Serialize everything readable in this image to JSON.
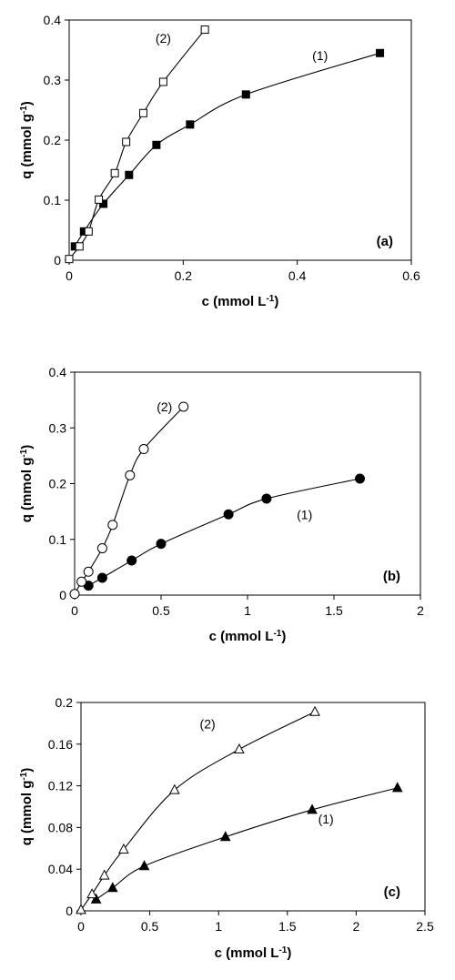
{
  "chart_data": [
    {
      "type": "scatter",
      "panel": "(a)",
      "xlabel": "c (mmol L",
      "xlabel_sup": "-1",
      "xlabel_close": ")",
      "ylabel": "q (mmol g",
      "ylabel_sup": "-1",
      "ylabel_close": ")",
      "xlim": [
        0,
        0.6
      ],
      "ylim": [
        0,
        0.4
      ],
      "xticks": [
        {
          "value": 0,
          "label": "0"
        },
        {
          "value": 0.2,
          "label": "0.2"
        },
        {
          "value": 0.4,
          "label": "0.4"
        },
        {
          "value": 0.6,
          "label": "0.6"
        }
      ],
      "yticks": [
        {
          "value": 0,
          "label": "0"
        },
        {
          "value": 0.1,
          "label": "0.1"
        },
        {
          "value": 0.2,
          "label": "0.2"
        },
        {
          "value": 0.3,
          "label": "0.3"
        },
        {
          "value": 0.4,
          "label": "0.4"
        }
      ],
      "grid": false,
      "series": [
        {
          "label": "(1)",
          "marker": "square",
          "filled": true,
          "x": [
            0.01,
            0.026,
            0.06,
            0.105,
            0.153,
            0.212,
            0.31,
            0.545
          ],
          "y": [
            0.023,
            0.048,
            0.094,
            0.142,
            0.192,
            0.226,
            0.276,
            0.345
          ],
          "label_at": [
            0.44,
            0.333
          ]
        },
        {
          "label": "(2)",
          "marker": "square",
          "filled": false,
          "x": [
            0,
            0.018,
            0.034,
            0.052,
            0.08,
            0.1,
            0.13,
            0.165,
            0.238
          ],
          "y": [
            0.002,
            0.023,
            0.048,
            0.101,
            0.145,
            0.197,
            0.245,
            0.297,
            0.384
          ],
          "label_at": [
            0.165,
            0.362
          ]
        }
      ]
    },
    {
      "type": "scatter",
      "panel": "(b)",
      "xlabel": "c (mmol L",
      "xlabel_sup": "-1",
      "xlabel_close": ")",
      "ylabel": "q (mmol g",
      "ylabel_sup": "-1",
      "ylabel_close": ")",
      "xlim": [
        0,
        2
      ],
      "ylim": [
        0,
        0.4
      ],
      "xticks": [
        {
          "value": 0,
          "label": "0"
        },
        {
          "value": 0.5,
          "label": "0.5"
        },
        {
          "value": 1,
          "label": "1"
        },
        {
          "value": 1.5,
          "label": "1.5"
        },
        {
          "value": 2,
          "label": "2"
        }
      ],
      "yticks": [
        {
          "value": 0,
          "label": "0"
        },
        {
          "value": 0.1,
          "label": "0.1"
        },
        {
          "value": 0.2,
          "label": "0.2"
        },
        {
          "value": 0.3,
          "label": "0.3"
        },
        {
          "value": 0.4,
          "label": "0.4"
        }
      ],
      "grid": false,
      "series": [
        {
          "label": "(1)",
          "marker": "circle",
          "filled": true,
          "x": [
            0.08,
            0.16,
            0.33,
            0.5,
            0.89,
            1.11,
            1.65
          ],
          "y": [
            0.017,
            0.031,
            0.062,
            0.092,
            0.145,
            0.173,
            0.209
          ],
          "label_at": [
            1.33,
            0.136
          ]
        },
        {
          "label": "(2)",
          "marker": "circle",
          "filled": false,
          "x": [
            0,
            0.04,
            0.08,
            0.16,
            0.22,
            0.32,
            0.4,
            0.63
          ],
          "y": [
            0.002,
            0.024,
            0.042,
            0.084,
            0.126,
            0.215,
            0.262,
            0.338
          ],
          "label_at": [
            0.52,
            0.33
          ]
        }
      ]
    },
    {
      "type": "scatter",
      "panel": "(c)",
      "xlabel": "c (mmol L",
      "xlabel_sup": "-1",
      "xlabel_close": ")",
      "ylabel": "q (mmol g",
      "ylabel_sup": "-1",
      "ylabel_close": ")",
      "xlim": [
        0,
        2.5
      ],
      "ylim": [
        0,
        0.2
      ],
      "xticks": [
        {
          "value": 0,
          "label": "0"
        },
        {
          "value": 0.5,
          "label": "0.5"
        },
        {
          "value": 1,
          "label": "1"
        },
        {
          "value": 1.5,
          "label": "1.5"
        },
        {
          "value": 2,
          "label": "2"
        },
        {
          "value": 2.5,
          "label": "2.5"
        }
      ],
      "yticks": [
        {
          "value": 0,
          "label": "0"
        },
        {
          "value": 0.04,
          "label": "0.04"
        },
        {
          "value": 0.08,
          "label": "0.08"
        },
        {
          "value": 0.12,
          "label": "0.12"
        },
        {
          "value": 0.16,
          "label": "0.16"
        },
        {
          "value": 0.2,
          "label": "0.2"
        }
      ],
      "grid": false,
      "series": [
        {
          "label": "(1)",
          "marker": "triangle",
          "filled": true,
          "x": [
            0.11,
            0.23,
            0.46,
            1.05,
            1.68,
            2.3
          ],
          "y": [
            0.011,
            0.022,
            0.043,
            0.071,
            0.097,
            0.118
          ],
          "label_at": [
            1.78,
            0.084
          ]
        },
        {
          "label": "(2)",
          "marker": "triangle",
          "filled": false,
          "x": [
            0,
            0.08,
            0.17,
            0.31,
            0.68,
            1.15,
            1.7
          ],
          "y": [
            0.001,
            0.016,
            0.034,
            0.059,
            0.116,
            0.155,
            0.191
          ],
          "label_at": [
            0.92,
            0.175
          ]
        }
      ]
    }
  ]
}
